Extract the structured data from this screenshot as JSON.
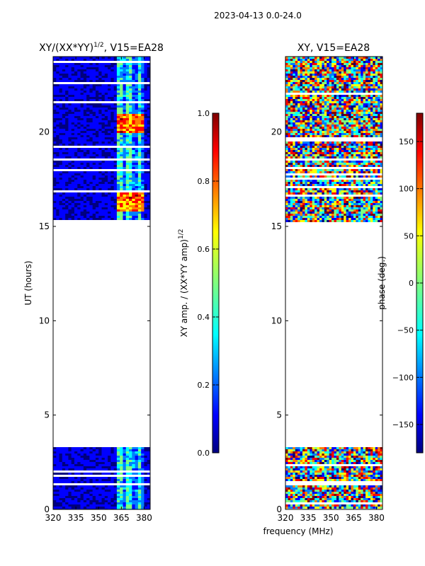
{
  "page_title": "2023-04-13 0.0-24.0",
  "chart_data": [
    {
      "type": "heatmap",
      "title_main": "XY/(XX*YY)",
      "title_exp": "1/2",
      "title_suffix": ", V15=EA28",
      "xlabel": "frequency (MHz)",
      "ylabel": "UT (hours)",
      "xlim": [
        320,
        384
      ],
      "ylim": [
        0,
        24
      ],
      "xticks": [
        "320",
        "335",
        "350",
        "365",
        "380"
      ],
      "yticks": [
        "0",
        "5",
        "10",
        "15",
        "20"
      ],
      "colorbar": {
        "label": "XY amp. / (XX*YY amp)",
        "label_exp": "1/2",
        "range": [
          0.0,
          1.0
        ],
        "ticks": [
          "0.0",
          "0.2",
          "0.4",
          "0.6",
          "0.8",
          "1.0"
        ]
      },
      "data_blocks_ut": [
        [
          0,
          3.3
        ],
        [
          15.4,
          24
        ]
      ],
      "bright_band_mhz": [
        362,
        380
      ]
    },
    {
      "type": "heatmap",
      "title": "XY, V15=EA28",
      "xlabel": "frequency (MHz)",
      "ylabel": "",
      "xlim": [
        320,
        384
      ],
      "ylim": [
        0,
        24
      ],
      "xticks": [
        "320",
        "335",
        "350",
        "365",
        "380"
      ],
      "yticks": [
        "0",
        "5",
        "10",
        "15",
        "20"
      ],
      "colorbar": {
        "label": "phase (deg.)",
        "range": [
          -180,
          180
        ],
        "ticks": [
          "−150",
          "−100",
          "−50",
          "0",
          "50",
          "100",
          "150"
        ]
      },
      "data_blocks_ut": [
        [
          0,
          3.3
        ],
        [
          15.2,
          24
        ]
      ]
    }
  ],
  "colors": {
    "jet": [
      "#00007f",
      "#0000ff",
      "#007fff",
      "#00ffff",
      "#7fff7f",
      "#ffff00",
      "#ff7f00",
      "#ff0000",
      "#7f0000"
    ],
    "background": "#ffffff",
    "axis": "#000000"
  }
}
